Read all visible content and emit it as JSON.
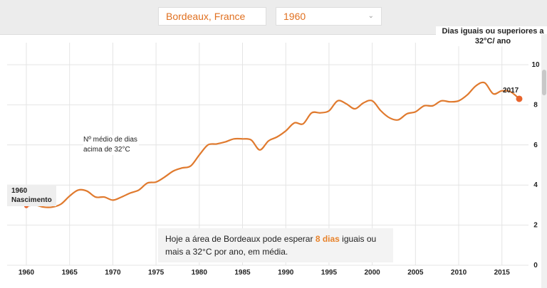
{
  "controls": {
    "city": "Bordeaux, France",
    "year": "1960"
  },
  "colors": {
    "line": "#e07a2e",
    "marker": "#e8642c",
    "grid": "#e4e4e4"
  },
  "chart_data": {
    "type": "line",
    "ylabel": "Dias iguais ou superiores a 32°C/ ano",
    "ylim": [
      0,
      10
    ],
    "xlim": [
      1960,
      2017
    ],
    "yticks": [
      0,
      2,
      4,
      6,
      8,
      10
    ],
    "xticks": [
      1960,
      1965,
      1970,
      1975,
      1980,
      1985,
      1990,
      1995,
      2000,
      2005,
      2010,
      2015
    ],
    "grid": true,
    "series": [
      {
        "x": [
          1960,
          1961,
          1962,
          1963,
          1964,
          1965,
          1966,
          1967,
          1968,
          1969,
          1970,
          1971,
          1972,
          1973,
          1974,
          1975,
          1976,
          1977,
          1978,
          1979,
          1980,
          1981,
          1982,
          1983,
          1984,
          1985,
          1986,
          1987,
          1988,
          1989,
          1990,
          1991,
          1992,
          1993,
          1994,
          1995,
          1996,
          1997,
          1998,
          1999,
          2000,
          2001,
          2002,
          2003,
          2004,
          2005,
          2006,
          2007,
          2008,
          2009,
          2010,
          2011,
          2012,
          2013,
          2014,
          2015,
          2016,
          2017
        ],
        "values": [
          2.95,
          3.0,
          2.9,
          2.9,
          3.05,
          3.45,
          3.75,
          3.7,
          3.4,
          3.4,
          3.25,
          3.4,
          3.6,
          3.75,
          4.1,
          4.15,
          4.4,
          4.7,
          4.85,
          4.95,
          5.5,
          6.0,
          6.05,
          6.15,
          6.3,
          6.3,
          6.25,
          5.75,
          6.2,
          6.4,
          6.7,
          7.1,
          7.05,
          7.6,
          7.6,
          7.7,
          8.2,
          8.05,
          7.8,
          8.1,
          8.2,
          7.7,
          7.35,
          7.25,
          7.55,
          7.65,
          7.95,
          7.95,
          8.2,
          8.15,
          8.2,
          8.5,
          8.95,
          9.1,
          8.55,
          8.7,
          8.65,
          8.3
        ]
      }
    ],
    "annotations": {
      "series_note": "Nº médio de dias acima de 32°C",
      "start_year": "1960",
      "start_text": "Nascimento",
      "end_year": "2017"
    }
  },
  "caption": {
    "before": "Hoje a área de Bordeaux pode esperar ",
    "highlight": "8 dias",
    "after": " iguais ou mais a 32°C por ano, em média."
  }
}
